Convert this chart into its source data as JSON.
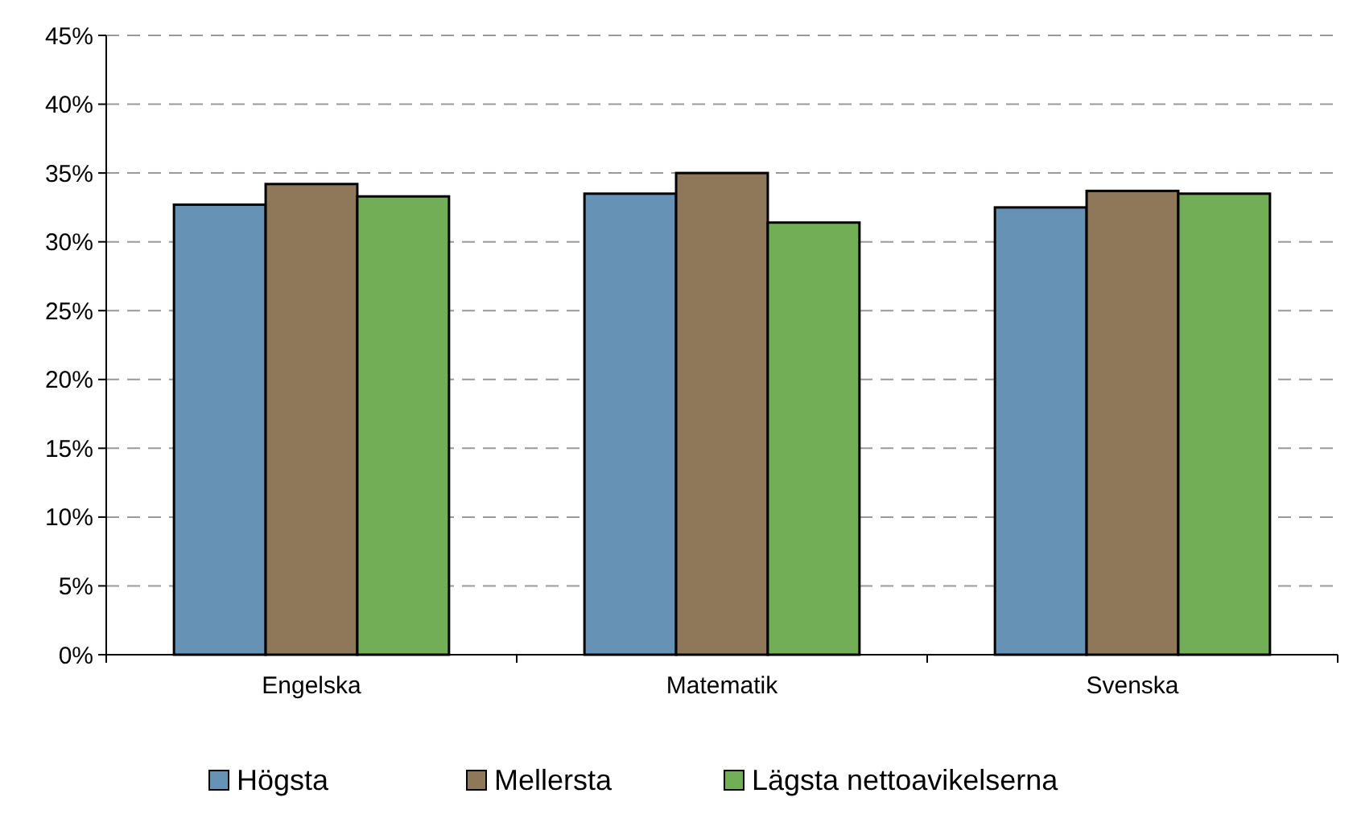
{
  "chart_data": {
    "type": "bar",
    "categories": [
      "Engelska",
      "Matematik",
      "Svenska"
    ],
    "series": [
      {
        "name": "Högsta",
        "color": "#6592b5",
        "values": [
          32.7,
          33.5,
          32.5
        ]
      },
      {
        "name": "Mellersta",
        "color": "#8f7859",
        "values": [
          34.2,
          35.0,
          33.7
        ]
      },
      {
        "name": "Lägsta nettoavikelserna",
        "color": "#72ae55",
        "values": [
          33.3,
          31.4,
          33.5
        ]
      }
    ],
    "ylim": [
      0,
      45
    ],
    "yticks": [
      {
        "value": 0,
        "label": "0%"
      },
      {
        "value": 5,
        "label": "5%"
      },
      {
        "value": 10,
        "label": "10%"
      },
      {
        "value": 15,
        "label": "15%"
      },
      {
        "value": 20,
        "label": "20%"
      },
      {
        "value": 25,
        "label": "25%"
      },
      {
        "value": 30,
        "label": "30%"
      },
      {
        "value": 35,
        "label": "35%"
      },
      {
        "value": 40,
        "label": "40%"
      },
      {
        "value": 45,
        "label": "45%"
      }
    ],
    "grid": "y",
    "legend": "bottom"
  }
}
